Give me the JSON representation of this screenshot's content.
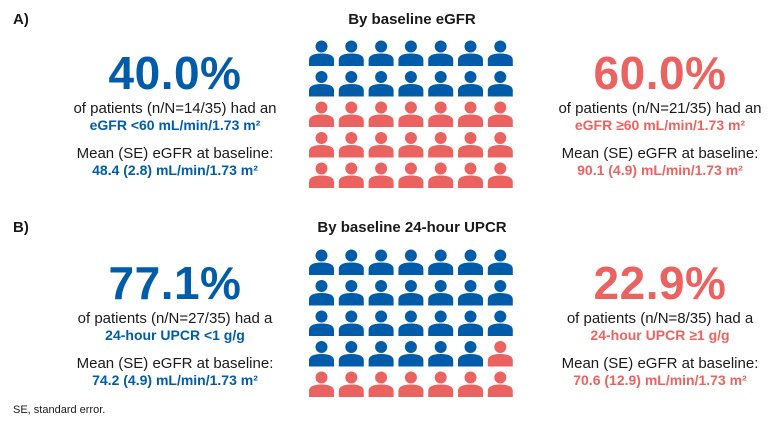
{
  "colors": {
    "blue": "#005ca8",
    "red": "#eb6361"
  },
  "panels": [
    {
      "label": "A)",
      "title": "By baseline eGFR",
      "left": {
        "pct": "40.0%",
        "line1": "of patients (n/N=14/35) had an",
        "line2": "eGFR <60 mL/min/1.73 m²",
        "line3": "Mean (SE) eGFR at baseline:",
        "line4": "48.4 (2.8) mL/min/1.73 m²"
      },
      "right": {
        "pct": "60.0%",
        "line1": "of patients (n/N=21/35) had an",
        "line2": "eGFR ≥60 mL/min/1.73 m²",
        "line3": "Mean (SE) eGFR at baseline:",
        "line4": "90.1 (4.9) mL/min/1.73 m²"
      }
    },
    {
      "label": "B)",
      "title": "By baseline 24-hour UPCR",
      "left": {
        "pct": "77.1%",
        "line1": "of patients (n/N=27/35) had a",
        "line2": "24-hour UPCR <1 g/g",
        "line3": "Mean (SE) eGFR at baseline:",
        "line4": "74.2 (4.9) mL/min/1.73 m²"
      },
      "right": {
        "pct": "22.9%",
        "line1": "of patients (n/N=8/35) had a",
        "line2": "24-hour UPCR ≥1 g/g",
        "line3": "Mean (SE) eGFR at baseline:",
        "line4": "70.6 (12.9) mL/min/1.73 m²"
      }
    }
  ],
  "footnote": "SE, standard error.",
  "chart_data": [
    {
      "type": "pictograph",
      "title": "By baseline eGFR",
      "total": 35,
      "columns": 7,
      "series": [
        {
          "name": "eGFR <60 mL/min/1.73 m²",
          "count": 14,
          "color": "#005ca8"
        },
        {
          "name": "eGFR ≥60 mL/min/1.73 m²",
          "count": 21,
          "color": "#eb6361"
        }
      ]
    },
    {
      "type": "pictograph",
      "title": "By baseline 24-hour UPCR",
      "total": 35,
      "columns": 7,
      "series": [
        {
          "name": "24-hour UPCR <1 g/g",
          "count": 27,
          "color": "#005ca8"
        },
        {
          "name": "24-hour UPCR ≥1 g/g",
          "count": 8,
          "color": "#eb6361"
        }
      ]
    }
  ]
}
